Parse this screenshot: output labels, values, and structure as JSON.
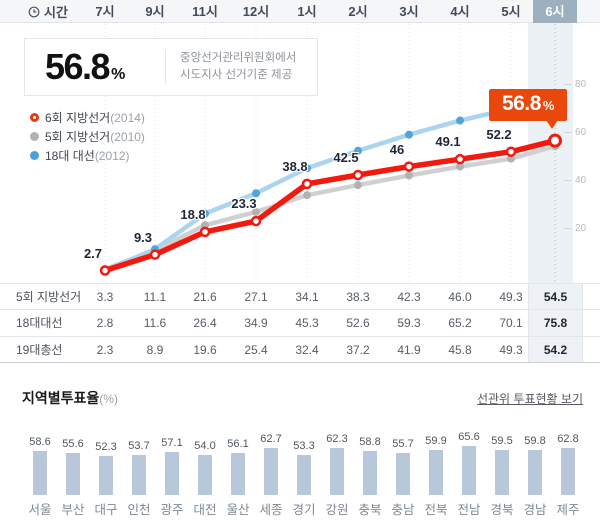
{
  "header": {
    "time_label": "시간",
    "times": [
      "7시",
      "9시",
      "11시",
      "12시",
      "1시",
      "2시",
      "3시",
      "4시",
      "5시"
    ],
    "current_time": "6시"
  },
  "summary": {
    "value": "56.8",
    "unit": "%",
    "source_line1": "중앙선거관리위원회에서",
    "source_line2": "시도지사 선거기준 제공"
  },
  "callout": {
    "value": "56.8",
    "unit": "%"
  },
  "legend": [
    {
      "label": "6회 지방선거",
      "year": "(2014)",
      "color": "#e8380d",
      "style": "ring"
    },
    {
      "label": "5회 지방선거",
      "year": "(2010)",
      "color": "#b2b2b2",
      "style": "dot"
    },
    {
      "label": "18대 대선",
      "year": "(2012)",
      "color": "#4ba1d8",
      "style": "dot"
    }
  ],
  "chart_data": [
    {
      "type": "line",
      "title": "시간대별 투표율(%)",
      "categories": [
        "7시",
        "9시",
        "11시",
        "12시",
        "1시",
        "2시",
        "3시",
        "4시",
        "5시",
        "6시"
      ],
      "series": [
        {
          "name": "6회 지방선거(2014)",
          "color": "#f2190f",
          "point": "ring",
          "values": [
            2.7,
            9.3,
            18.8,
            23.3,
            38.8,
            42.5,
            46,
            49.1,
            52.2,
            56.8
          ],
          "labels": [
            "2.7",
            "9.3",
            "18.8",
            "23.3",
            "38.8",
            "42.5",
            "46",
            "49.1",
            "52.2"
          ]
        },
        {
          "name": "5회 지방선거(2010)",
          "color": "#d0d0d0",
          "dot_color": "#b2b2b2",
          "point": "dot",
          "values": [
            3.3,
            11.1,
            21.6,
            27.1,
            34.1,
            38.3,
            42.3,
            46.0,
            49.3,
            54.5
          ]
        },
        {
          "name": "18대 대선(2012)",
          "color": "#abd4ee",
          "dot_color": "#51a5da",
          "point": "dot",
          "values": [
            2.8,
            11.6,
            26.4,
            34.9,
            45.3,
            52.6,
            59.3,
            65.2,
            70.1,
            75.8
          ]
        }
      ],
      "ylim": [
        0,
        83
      ],
      "yticks": [
        20,
        40,
        60,
        80
      ],
      "grid": "vertical-dotted",
      "legend_position": "top-left"
    },
    {
      "type": "bar",
      "title": "지역별투표율(%)",
      "categories": [
        "서울",
        "부산",
        "대구",
        "인천",
        "광주",
        "대전",
        "울산",
        "세종",
        "경기",
        "강원",
        "충북",
        "충남",
        "전북",
        "전남",
        "경북",
        "경남",
        "제주"
      ],
      "values": [
        58.6,
        55.6,
        52.3,
        53.7,
        57.1,
        54.0,
        56.1,
        62.7,
        53.3,
        62.3,
        58.8,
        55.7,
        59.9,
        65.6,
        59.5,
        59.8,
        62.8
      ],
      "values_display": [
        "58.6",
        "55.6",
        "52.3",
        "53.7",
        "57.1",
        "54.0",
        "56.1",
        "62.7",
        "53.3",
        "62.3",
        "58.8",
        "55.7",
        "59.9",
        "65.6",
        "59.5",
        "59.8",
        "62.8"
      ],
      "xlabel": "",
      "ylabel": "",
      "ylim": [
        0,
        70
      ]
    }
  ],
  "table": {
    "rows": [
      {
        "label": "5회 지방선거",
        "values": [
          "3.3",
          "11.1",
          "21.6",
          "27.1",
          "34.1",
          "38.3",
          "42.3",
          "46.0",
          "49.3"
        ],
        "final": "54.5"
      },
      {
        "label": "18대대선",
        "values": [
          "2.8",
          "11.6",
          "26.4",
          "34.9",
          "45.3",
          "52.6",
          "59.3",
          "65.2",
          "70.1"
        ],
        "final": "75.8"
      },
      {
        "label": "19대총선",
        "values": [
          "2.3",
          "8.9",
          "19.6",
          "25.4",
          "32.4",
          "37.2",
          "41.9",
          "45.8",
          "49.3"
        ],
        "final": "54.2"
      }
    ]
  },
  "region_section": {
    "title": "지역별투표율",
    "unit": "(%)",
    "link": "선관위 투표현황 보기"
  },
  "colors": {
    "accent_red": "#f2190f",
    "callout_orange": "#ea470d",
    "line_gray": "#d0d0d0",
    "line_blue": "#abd4ee",
    "dot_blue": "#51a5da",
    "band": "#ecf1f6",
    "current_header_cell": "#9db0c0",
    "bar_fill": "#b8c7d9"
  }
}
